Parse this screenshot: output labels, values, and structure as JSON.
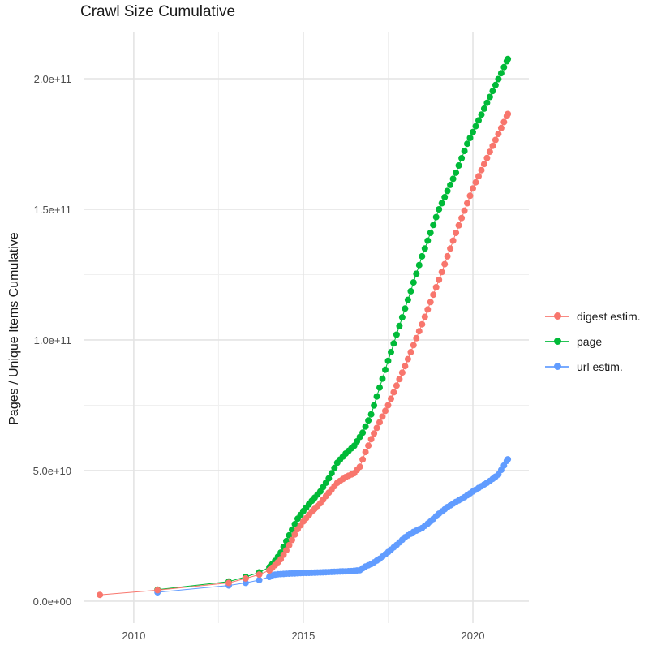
{
  "title": "Crawl Size Cumulative",
  "y_axis": {
    "label": "Pages / Unique Items Cumulative",
    "ticks": [
      {
        "value": 0,
        "label": "0.0e+00"
      },
      {
        "value": 50,
        "label": "5.0e+10"
      },
      {
        "value": 100,
        "label": "1.0e+11"
      },
      {
        "value": 150,
        "label": "1.5e+11"
      },
      {
        "value": 200,
        "label": "2.0e+11"
      }
    ],
    "minor_ticks": [
      25,
      75,
      125,
      175
    ]
  },
  "x_axis": {
    "ticks": [
      {
        "value": 2010,
        "label": "2010"
      },
      {
        "value": 2015,
        "label": "2015"
      },
      {
        "value": 2020,
        "label": "2020"
      }
    ],
    "minor_ticks": [
      2012.5,
      2017.5
    ]
  },
  "colors": {
    "background": "#FFFFFF",
    "grid_major": "#E4E4E4",
    "grid_minor": "#F0F0F0",
    "axis_text": "#4D4D4D",
    "title_text": "#1A1A1A"
  },
  "legend": {
    "position": "right"
  },
  "chart_data": {
    "type": "line",
    "title": "Crawl Size Cumulative",
    "xlabel": "",
    "ylabel": "Pages / Unique Items Cumulative",
    "y_values_unit": "1e9 items (billions)",
    "x_values_unit": "decimal year",
    "xlim": [
      2008.52,
      2021.65
    ],
    "ylim": [
      -8.4,
      217.7
    ],
    "grid": true,
    "legend_position": "right",
    "point_style": "dot+line",
    "sampling_note": "dense portion of each series is monthly crawls; values interpolated between measured anchors",
    "series": [
      {
        "name": "url estim.",
        "color": "#619CFF",
        "points_early": [
          [
            2010.7,
            3.4
          ],
          [
            2012.8,
            6.0
          ],
          [
            2013.3,
            7.0
          ],
          [
            2013.7,
            8.1
          ]
        ],
        "anchors": [
          [
            2014.0,
            9.3
          ],
          [
            2014.1,
            10.0
          ],
          [
            2014.25,
            10.3
          ],
          [
            2014.5,
            10.5
          ],
          [
            2015.0,
            10.8
          ],
          [
            2015.5,
            11.0
          ],
          [
            2016.0,
            11.3
          ],
          [
            2016.4,
            11.5
          ],
          [
            2016.7,
            11.9
          ],
          [
            2016.78,
            13.0
          ],
          [
            2017.0,
            14.2
          ],
          [
            2017.25,
            16.2
          ],
          [
            2017.5,
            18.8
          ],
          [
            2017.75,
            21.5
          ],
          [
            2018.0,
            24.5
          ],
          [
            2018.25,
            26.5
          ],
          [
            2018.5,
            28.0
          ],
          [
            2018.75,
            30.5
          ],
          [
            2019.0,
            33.5
          ],
          [
            2019.25,
            36.0
          ],
          [
            2019.5,
            38.0
          ],
          [
            2019.75,
            39.8
          ],
          [
            2020.0,
            42.0
          ],
          [
            2020.25,
            44.0
          ],
          [
            2020.5,
            46.0
          ],
          [
            2020.75,
            48.5
          ],
          [
            2021.03,
            54.3
          ]
        ],
        "step_per_year": 12
      },
      {
        "name": "page",
        "color": "#00BA38",
        "points_early": [
          [
            2010.7,
            4.4
          ],
          [
            2012.8,
            7.5
          ],
          [
            2013.3,
            9.3
          ],
          [
            2013.7,
            11.0
          ]
        ],
        "anchors": [
          [
            2014.0,
            13.0
          ],
          [
            2014.17,
            15.5
          ],
          [
            2014.33,
            18.5
          ],
          [
            2014.5,
            23.0
          ],
          [
            2014.67,
            27.5
          ],
          [
            2014.83,
            31.5
          ],
          [
            2015.0,
            34.5
          ],
          [
            2015.25,
            38.4
          ],
          [
            2015.5,
            42.0
          ],
          [
            2015.75,
            47.0
          ],
          [
            2016.0,
            53.0
          ],
          [
            2016.25,
            56.5
          ],
          [
            2016.5,
            59.5
          ],
          [
            2016.75,
            64.5
          ],
          [
            2017.0,
            71.5
          ],
          [
            2017.5,
            92.0
          ],
          [
            2018.0,
            112.0
          ],
          [
            2018.5,
            132.0
          ],
          [
            2019.0,
            150.0
          ],
          [
            2019.5,
            164.0
          ],
          [
            2019.83,
            175.0
          ],
          [
            2020.5,
            193.0
          ],
          [
            2021.03,
            207.5
          ]
        ],
        "step_per_year": 12
      },
      {
        "name": "digest estim.",
        "color": "#F8766D",
        "points_early": [
          [
            2009.0,
            2.4
          ],
          [
            2010.7,
            4.2
          ],
          [
            2012.8,
            7.0
          ],
          [
            2013.3,
            8.7
          ],
          [
            2013.7,
            10.2
          ]
        ],
        "anchors": [
          [
            2014.0,
            11.8
          ],
          [
            2014.17,
            13.8
          ],
          [
            2014.33,
            16.0
          ],
          [
            2014.5,
            19.5
          ],
          [
            2014.67,
            23.5
          ],
          [
            2014.83,
            27.5
          ],
          [
            2015.0,
            30.5
          ],
          [
            2015.25,
            34.3
          ],
          [
            2015.5,
            37.5
          ],
          [
            2015.75,
            41.5
          ],
          [
            2016.0,
            45.3
          ],
          [
            2016.25,
            47.5
          ],
          [
            2016.5,
            49.0
          ],
          [
            2016.67,
            51.5
          ],
          [
            2016.83,
            57.0
          ],
          [
            2017.0,
            62.0
          ],
          [
            2017.5,
            75.0
          ],
          [
            2018.0,
            90.0
          ],
          [
            2018.5,
            106.0
          ],
          [
            2019.0,
            123.0
          ],
          [
            2019.5,
            141.0
          ],
          [
            2020.0,
            158.0
          ],
          [
            2020.5,
            172.0
          ],
          [
            2021.03,
            186.5
          ]
        ],
        "step_per_year": 12
      }
    ],
    "legend_order": [
      "digest estim.",
      "page",
      "url estim."
    ]
  }
}
